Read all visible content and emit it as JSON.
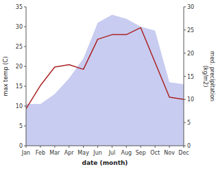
{
  "chart_data": {
    "type": "area",
    "categories": [
      "Jan",
      "Feb",
      "Mar",
      "Apr",
      "May",
      "Jun",
      "Jul",
      "Aug",
      "Sep",
      "Oct",
      "Nov",
      "Dec"
    ],
    "series": [
      {
        "type": "area",
        "color": "#c8ccf0",
        "values": [
          10.5,
          10.5,
          13.0,
          17.0,
          22.0,
          31.0,
          33.0,
          32.0,
          30.0,
          29.0,
          16.0,
          15.5
        ]
      },
      {
        "type": "line",
        "color": "#aa2222",
        "axis": "y2",
        "values": [
          8.0,
          13.0,
          17.0,
          17.5,
          16.5,
          23.0,
          24.0,
          24.0,
          25.5,
          18.0,
          10.5,
          10.0
        ]
      }
    ],
    "xlabel": "date (month)",
    "ylabel": "max temp (C)",
    "y2label": "med. precipitation\n(kg/m2)",
    "ylim": [
      0,
      35
    ],
    "yticks": [
      0,
      5,
      10,
      15,
      20,
      25,
      30,
      35
    ],
    "y2lim": [
      0,
      30
    ],
    "y2ticks": [
      0,
      5,
      10,
      15,
      20,
      25,
      30
    ],
    "grid": false
  }
}
